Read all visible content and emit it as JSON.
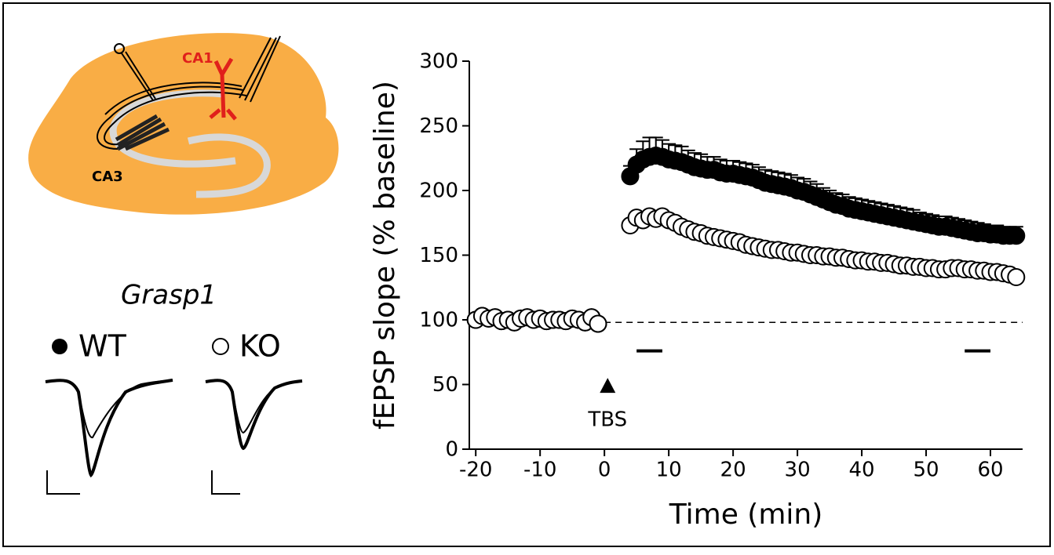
{
  "schematic": {
    "labels": [
      "CA1",
      "CA3"
    ]
  },
  "traces": {
    "gene": "Grasp1"
  },
  "chart_data": {
    "type": "scatter",
    "xlabel": "Time (min)",
    "ylabel": "fEPSP slope (% baseline)",
    "xlim": [
      -21,
      65
    ],
    "xticks": [
      -20,
      -10,
      0,
      10,
      20,
      30,
      40,
      50,
      60
    ],
    "ylim": [
      0,
      300
    ],
    "yticks": [
      0,
      50,
      100,
      150,
      200,
      250,
      300
    ],
    "reference_line": {
      "y": 98,
      "x": [
        0,
        65
      ]
    },
    "windows": [
      {
        "x": [
          5,
          9
        ],
        "y": 76
      },
      {
        "x": [
          56,
          60
        ],
        "y": 76
      }
    ],
    "annotations": [
      {
        "text": "TBS",
        "x": 0.5,
        "y": 49
      }
    ],
    "x": [
      -20,
      -19,
      -18,
      -17,
      -16,
      -15,
      -14,
      -13,
      -12,
      -11,
      -10,
      -9,
      -8,
      -7,
      -6,
      -5,
      -4,
      -3,
      -2,
      -1,
      4,
      5,
      6,
      7,
      8,
      9,
      10,
      11,
      12,
      13,
      14,
      15,
      16,
      17,
      18,
      19,
      20,
      21,
      22,
      23,
      24,
      25,
      26,
      27,
      28,
      29,
      30,
      31,
      32,
      33,
      34,
      35,
      36,
      37,
      38,
      39,
      40,
      41,
      42,
      43,
      44,
      45,
      46,
      47,
      48,
      49,
      50,
      51,
      52,
      53,
      54,
      55,
      56,
      57,
      58,
      59,
      60,
      61,
      62,
      63,
      64
    ],
    "series": [
      {
        "name": "WT",
        "color": "#000000",
        "values": [
          100,
          103,
          101,
          102,
          99,
          100,
          98,
          101,
          102,
          100,
          101,
          99,
          100,
          100,
          99,
          101,
          100,
          98,
          102,
          97,
          211,
          220,
          224,
          226,
          227,
          226,
          224,
          223,
          222,
          220,
          218,
          217,
          216,
          216,
          214,
          213,
          213,
          212,
          211,
          210,
          208,
          206,
          205,
          204,
          203,
          202,
          200,
          199,
          197,
          195,
          193,
          191,
          189,
          188,
          186,
          185,
          184,
          183,
          182,
          181,
          180,
          179,
          178,
          177,
          176,
          175,
          174,
          173,
          172,
          172,
          171,
          170,
          169,
          168,
          167,
          167,
          166,
          166,
          165,
          165,
          165
        ],
        "errors": [
          3,
          3,
          3,
          3,
          3,
          3,
          3,
          3,
          3,
          3,
          3,
          3,
          3,
          3,
          3,
          3,
          3,
          3,
          3,
          3,
          8,
          12,
          14,
          15,
          14,
          13,
          12,
          12,
          12,
          11,
          11,
          11,
          10,
          10,
          10,
          10,
          10,
          10,
          10,
          10,
          10,
          10,
          10,
          10,
          10,
          10,
          10,
          10,
          10,
          10,
          9,
          9,
          9,
          9,
          9,
          9,
          9,
          9,
          9,
          9,
          9,
          9,
          9,
          9,
          9,
          8,
          8,
          8,
          8,
          8,
          8,
          8,
          8,
          8,
          8,
          7,
          7,
          7,
          7,
          7,
          7
        ]
      },
      {
        "name": "KO",
        "color": "#ffffff",
        "values": [
          100,
          103,
          101,
          102,
          99,
          100,
          98,
          101,
          102,
          100,
          101,
          99,
          100,
          100,
          99,
          101,
          100,
          98,
          102,
          97,
          173,
          179,
          177,
          180,
          178,
          180,
          177,
          175,
          172,
          170,
          168,
          167,
          165,
          164,
          163,
          162,
          161,
          160,
          158,
          157,
          156,
          155,
          154,
          154,
          153,
          152,
          152,
          151,
          150,
          150,
          149,
          149,
          148,
          148,
          147,
          146,
          146,
          145,
          145,
          144,
          144,
          143,
          142,
          142,
          141,
          141,
          140,
          140,
          139,
          139,
          140,
          140,
          139,
          139,
          138,
          138,
          137,
          137,
          136,
          135,
          133
        ]
      }
    ]
  }
}
